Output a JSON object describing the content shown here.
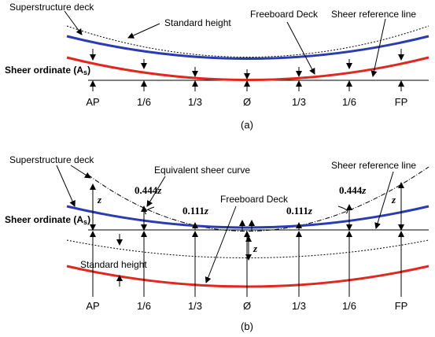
{
  "panel_a": {
    "caption": "(a)",
    "labels": {
      "superstructure": "Superstructure deck",
      "standard": "Standard height",
      "freeboard": "Freeboard Deck",
      "sheer_ref": "Sheer reference line",
      "sheer_ord": "Sheer ordinate",
      "sheer_ord_sym": "(A",
      "sheer_ord_sub": "s",
      "sheer_ord_close": ")"
    },
    "ticks": [
      "AP",
      "1/6",
      "1/3",
      "Ø",
      "1/3",
      "1/6",
      "FP"
    ]
  },
  "panel_b": {
    "caption": "(b)",
    "labels": {
      "superstructure": "Superstructure deck",
      "equivalent": "Equivalent sheer curve",
      "sheer_ref": "Sheer reference line",
      "freeboard": "Freeboard Deck",
      "standard": "Standard height",
      "sheer_ord": "Sheer ordinate",
      "sheer_ord_sym": "(A",
      "sheer_ord_sub": "s",
      "sheer_ord_close": ")",
      "coef_444": "0.444",
      "coef_111": "0.111",
      "z": "z"
    },
    "ticks": [
      "AP",
      "1/6",
      "1/3",
      "Ø",
      "1/3",
      "1/6",
      "FP"
    ]
  },
  "colors": {
    "superstructure": "#2b3cb0",
    "freeboard": "#e0281e",
    "line": "#000000"
  }
}
